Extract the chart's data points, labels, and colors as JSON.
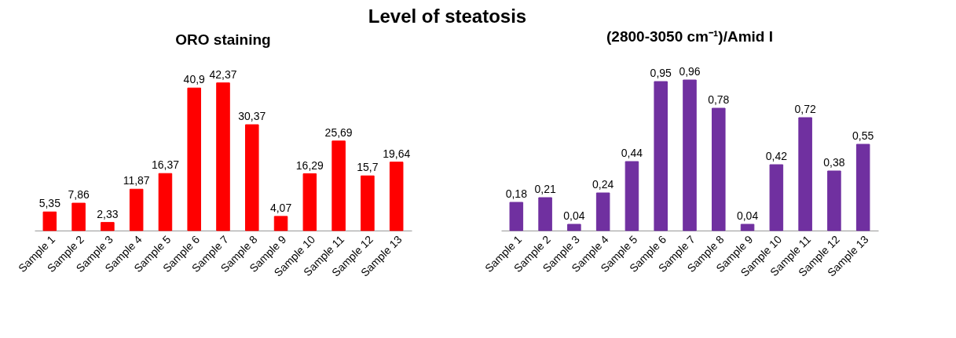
{
  "chart_data": [
    {
      "type": "bar",
      "title": "ORO staining",
      "annotations": [
        "Level of steatosis"
      ],
      "categories": [
        "Sample 1",
        "Sample 2",
        "Sample 3",
        "Sample 4",
        "Sample 5",
        "Sample 6",
        "Sample 7",
        "Sample 8",
        "Sample 9",
        "Sample 10",
        "Sample 11",
        "Sample 12",
        "Sample 13"
      ],
      "values": [
        5.35,
        7.86,
        2.33,
        11.87,
        16.37,
        40.9,
        42.37,
        30.37,
        4.07,
        16.29,
        25.69,
        15.7,
        19.64
      ],
      "value_labels": [
        "5,35",
        "7,86",
        "2,33",
        "11,87",
        "16,37",
        "40,9",
        "42,37",
        "30,37",
        "4,07",
        "16,29",
        "25,69",
        "15,7",
        "19,64"
      ],
      "color": "#ff0000"
    },
    {
      "type": "bar",
      "title": "(2800-3050 cm⁻¹)/Amid I",
      "categories": [
        "Sample 1",
        "Sample 2",
        "Sample 3",
        "Sample 4",
        "Sample 5",
        "Sample 6",
        "Sample 7",
        "Sample 8",
        "Sample 9",
        "Sample 10",
        "Sample 11",
        "Sample 12",
        "Sample 13"
      ],
      "values": [
        0.18,
        0.21,
        0.04,
        0.24,
        0.44,
        0.95,
        0.96,
        0.78,
        0.04,
        0.42,
        0.72,
        0.38,
        0.55
      ],
      "value_labels": [
        "0,18",
        "0,21",
        "0,04",
        "0,24",
        "0,44",
        "0,95",
        "0,96",
        "0,78",
        "0,04",
        "0,42",
        "0,72",
        "0,38",
        "0,55"
      ],
      "color": "#7030a0"
    }
  ]
}
